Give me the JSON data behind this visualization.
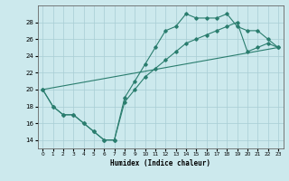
{
  "xlabel": "Humidex (Indice chaleur)",
  "bg_color": "#cce9ed",
  "line_color": "#2a7d6e",
  "grid_color": "#a8cdd4",
  "xlim": [
    -0.5,
    23.5
  ],
  "ylim": [
    13.0,
    30.0
  ],
  "xticks": [
    0,
    1,
    2,
    3,
    4,
    5,
    6,
    7,
    8,
    9,
    10,
    11,
    12,
    13,
    14,
    15,
    16,
    17,
    18,
    19,
    20,
    21,
    22,
    23
  ],
  "yticks": [
    14,
    16,
    18,
    20,
    22,
    24,
    26,
    28
  ],
  "curve1_x": [
    0,
    1,
    2,
    3,
    4,
    5,
    6,
    7,
    8,
    9,
    10,
    11,
    12,
    13,
    14,
    15,
    16,
    17,
    18,
    19,
    20,
    21,
    22,
    23
  ],
  "curve1_y": [
    20,
    18,
    17,
    17,
    16,
    15,
    14,
    14,
    19,
    21,
    23,
    25,
    27,
    27.5,
    29,
    28.5,
    28.5,
    28.5,
    29,
    27.5,
    27,
    27,
    26,
    25
  ],
  "curve2_x": [
    0,
    1,
    2,
    3,
    4,
    5,
    6,
    7,
    8,
    9,
    10,
    11,
    12,
    13,
    14,
    15,
    16,
    17,
    18,
    19,
    20,
    21,
    22,
    23
  ],
  "curve2_y": [
    20,
    18,
    17,
    17,
    16,
    15,
    14,
    14,
    18.5,
    20,
    21.5,
    22.5,
    23.5,
    24.5,
    25.5,
    26,
    26.5,
    27,
    27.5,
    28,
    24.5,
    25,
    25.5,
    25
  ],
  "line3_x": [
    0,
    23
  ],
  "line3_y": [
    20,
    25.0
  ]
}
